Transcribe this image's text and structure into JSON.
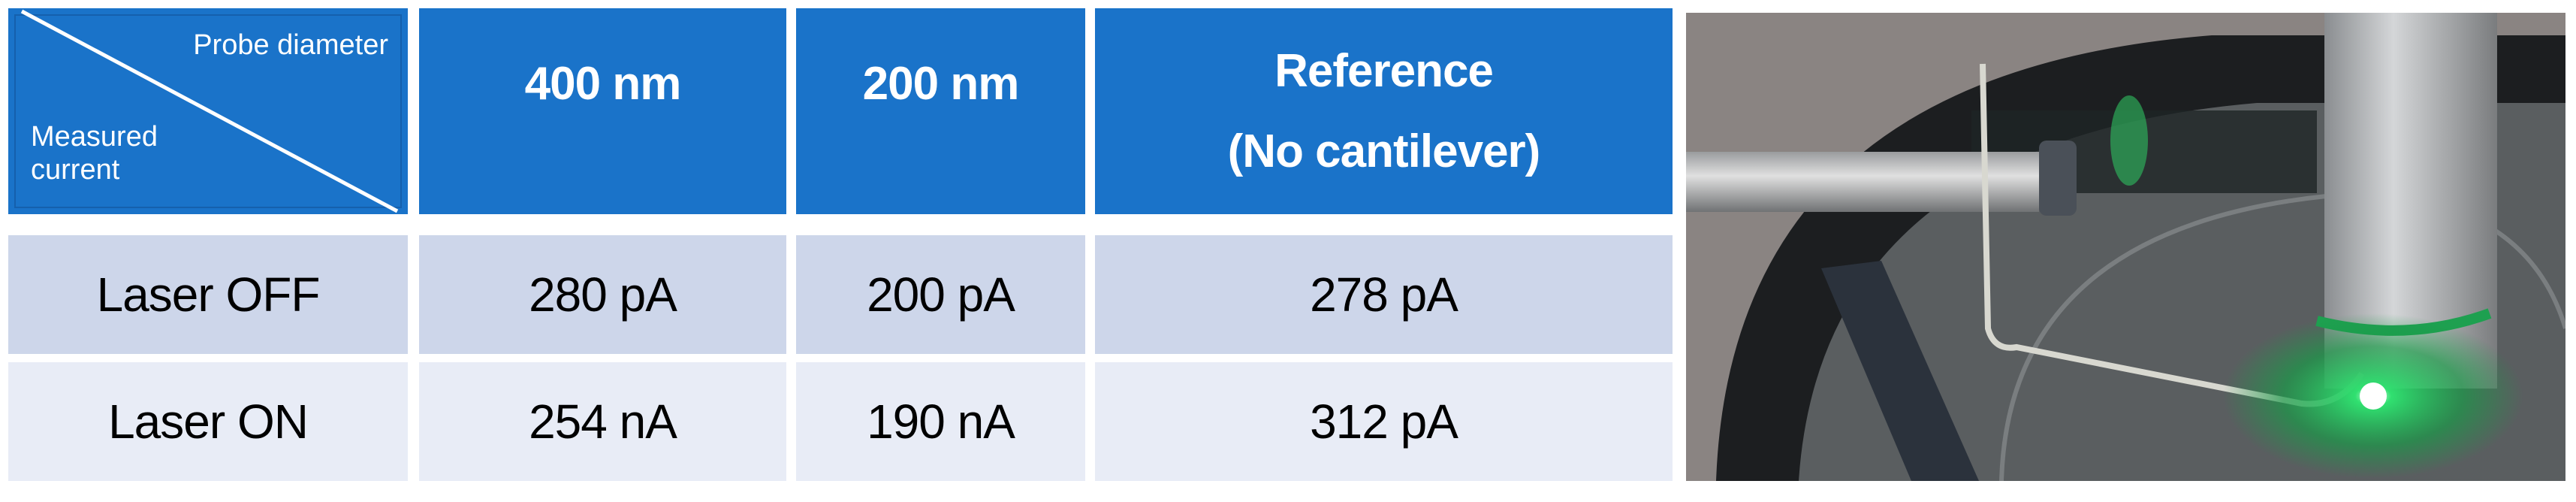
{
  "table": {
    "corner": {
      "top_label": "Probe diameter",
      "bottom_label_line1": "Measured",
      "bottom_label_line2": "current"
    },
    "columns": [
      "400 nm",
      "200 nm",
      "Reference",
      "(No cantilever)"
    ],
    "rows": [
      {
        "label": "Laser OFF",
        "values": [
          "280 pA",
          "200 pA",
          "278 pA"
        ]
      },
      {
        "label": "Laser ON",
        "values": [
          "254 nA",
          "190 nA",
          "312 pA"
        ]
      }
    ]
  },
  "colors": {
    "header_blue": "#1a73c9",
    "row_odd": "#cdd6ea",
    "row_even": "#e8ecf6",
    "laser_green": "#22e060"
  }
}
